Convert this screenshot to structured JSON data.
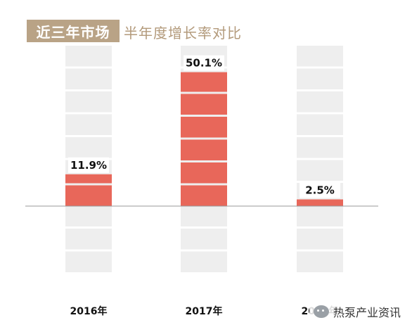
{
  "header": {
    "title_main": "近三年市场",
    "title_sub": "半年度增长率对比"
  },
  "chart_data": {
    "type": "bar",
    "categories": [
      "2016年",
      "2017年",
      "2018年"
    ],
    "values": [
      11.9,
      50.1,
      2.5
    ],
    "value_labels": [
      "11.9%",
      "50.1%",
      "2.5%"
    ],
    "ylim": [
      -25,
      60
    ],
    "grid": false,
    "bar_color": "#e8675a",
    "bg_column_color": "#eeeeee"
  },
  "watermark": {
    "text": "热泵产业资讯"
  }
}
